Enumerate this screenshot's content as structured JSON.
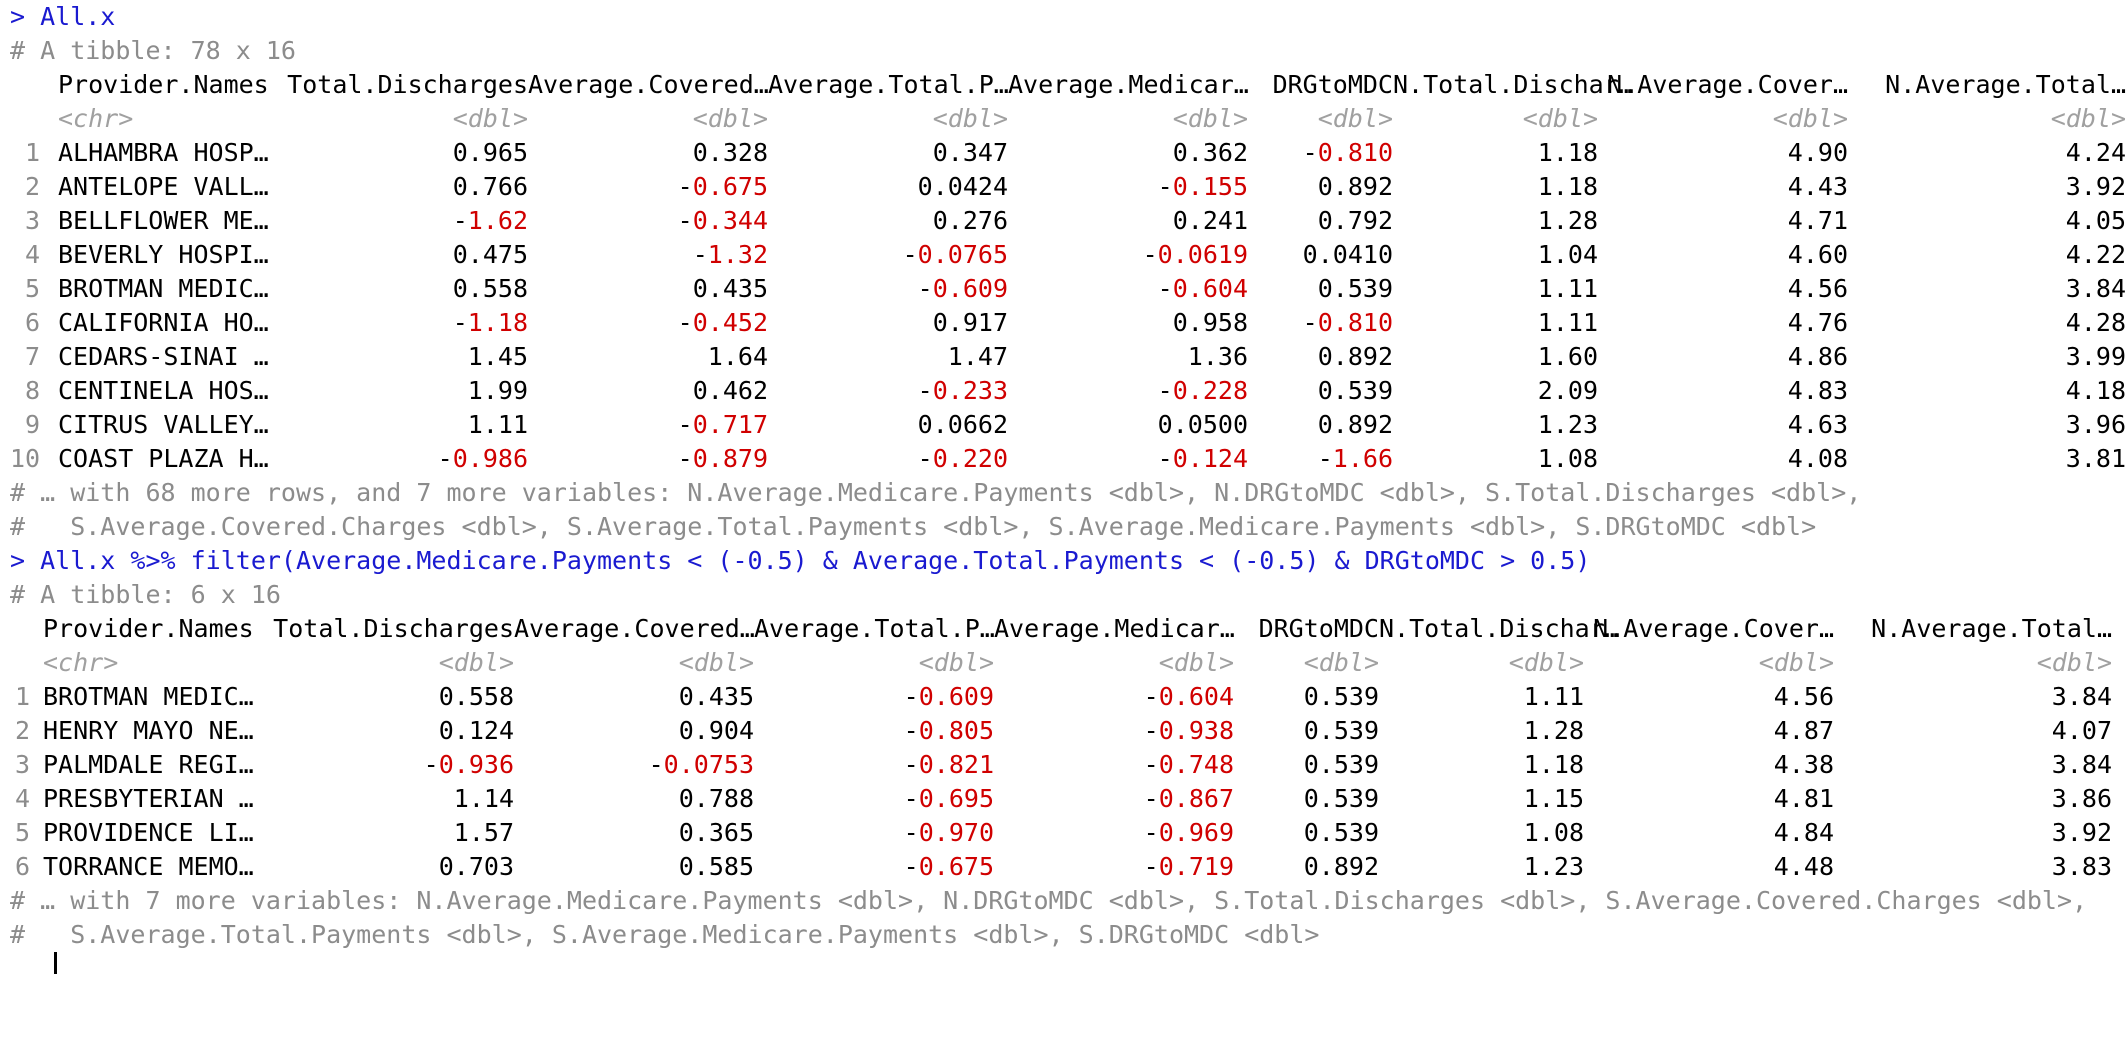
{
  "console": {
    "command1": "> All.x",
    "tibble1": {
      "header": "# A tibble: 78 x 16",
      "columns": [
        "Provider.Names",
        "Total.Discharges",
        "Average.Covered…",
        "Average.Total.P…",
        "Average.Medicar…",
        "DRGtoMDC",
        "N.Total.Dischar…",
        "N.Average.Cover…",
        "N.Average.Total…"
      ],
      "types": [
        "<chr>",
        "<dbl>",
        "<dbl>",
        "<dbl>",
        "<dbl>",
        "<dbl>",
        "<dbl>",
        "<dbl>",
        "<dbl>"
      ],
      "rows": [
        [
          "1",
          "ALHAMBRA HOSP…",
          "0.965",
          "0.328",
          "0.347",
          "0.362",
          "-0.810",
          "1.18",
          "4.90",
          "4.24"
        ],
        [
          "2",
          "ANTELOPE VALL…",
          "0.766",
          "-0.675",
          "0.0424",
          "-0.155",
          "0.892",
          "1.18",
          "4.43",
          "3.92"
        ],
        [
          "3",
          "BELLFLOWER ME…",
          "-1.62",
          "-0.344",
          "0.276",
          "0.241",
          "0.792",
          "1.28",
          "4.71",
          "4.05"
        ],
        [
          "4",
          "BEVERLY HOSPI…",
          "0.475",
          "-1.32",
          "-0.0765",
          "-0.0619",
          "0.0410",
          "1.04",
          "4.60",
          "4.22"
        ],
        [
          "5",
          "BROTMAN MEDIC…",
          "0.558",
          "0.435",
          "-0.609",
          "-0.604",
          "0.539",
          "1.11",
          "4.56",
          "3.84"
        ],
        [
          "6",
          "CALIFORNIA HO…",
          "-1.18",
          "-0.452",
          "0.917",
          "0.958",
          "-0.810",
          "1.11",
          "4.76",
          "4.28"
        ],
        [
          "7",
          "CEDARS-SINAI …",
          "1.45",
          "1.64",
          "1.47",
          "1.36",
          "0.892",
          "1.60",
          "4.86",
          "3.99"
        ],
        [
          "8",
          "CENTINELA HOS…",
          "1.99",
          "0.462",
          "-0.233",
          "-0.228",
          "0.539",
          "2.09",
          "4.83",
          "4.18"
        ],
        [
          "9",
          "CITRUS VALLEY…",
          "1.11",
          "-0.717",
          "0.0662",
          "0.0500",
          "0.892",
          "1.23",
          "4.63",
          "3.96"
        ],
        [
          "10",
          "COAST PLAZA H…",
          "-0.986",
          "-0.879",
          "-0.220",
          "-0.124",
          "-1.66",
          "1.08",
          "4.08",
          "3.81"
        ]
      ],
      "footer": [
        "# … with 68 more rows, and 7 more variables: N.Average.Medicare.Payments <dbl>, N.DRGtoMDC <dbl>, S.Total.Discharges <dbl>,",
        "#   S.Average.Covered.Charges <dbl>, S.Average.Total.Payments <dbl>, S.Average.Medicare.Payments <dbl>, S.DRGtoMDC <dbl>"
      ]
    },
    "command2": "> All.x %>% filter(Average.Medicare.Payments < (-0.5) & Average.Total.Payments < (-0.5) & DRGtoMDC > 0.5)",
    "tibble2": {
      "header": "# A tibble: 6 x 16",
      "columns": [
        "Provider.Names",
        "Total.Discharges",
        "Average.Covered…",
        "Average.Total.P…",
        "Average.Medicar…",
        "DRGtoMDC",
        "N.Total.Dischar…",
        "N.Average.Cover…",
        "N.Average.Total…"
      ],
      "types": [
        "<chr>",
        "<dbl>",
        "<dbl>",
        "<dbl>",
        "<dbl>",
        "<dbl>",
        "<dbl>",
        "<dbl>",
        "<dbl>"
      ],
      "rows": [
        [
          "1",
          "BROTMAN MEDIC…",
          "0.558",
          "0.435",
          "-0.609",
          "-0.604",
          "0.539",
          "1.11",
          "4.56",
          "3.84"
        ],
        [
          "2",
          "HENRY MAYO NE…",
          "0.124",
          "0.904",
          "-0.805",
          "-0.938",
          "0.539",
          "1.28",
          "4.87",
          "4.07"
        ],
        [
          "3",
          "PALMDALE REGI…",
          "-0.936",
          "-0.0753",
          "-0.821",
          "-0.748",
          "0.539",
          "1.18",
          "4.38",
          "3.84"
        ],
        [
          "4",
          "PRESBYTERIAN …",
          "1.14",
          "0.788",
          "-0.695",
          "-0.867",
          "0.539",
          "1.15",
          "4.81",
          "3.86"
        ],
        [
          "5",
          "PROVIDENCE LI…",
          "1.57",
          "0.365",
          "-0.970",
          "-0.969",
          "0.539",
          "1.08",
          "4.84",
          "3.92"
        ],
        [
          "6",
          "TORRANCE MEMO…",
          "0.703",
          "0.585",
          "-0.675",
          "-0.719",
          "0.892",
          "1.23",
          "4.48",
          "3.83"
        ]
      ],
      "footer": [
        "# … with 7 more variables: N.Average.Medicare.Payments <dbl>, N.DRGtoMDC <dbl>, S.Total.Discharges <dbl>, S.Average.Covered.Charges <dbl>,",
        "#   S.Average.Total.Payments <dbl>, S.Average.Medicare.Payments <dbl>, S.DRGtoMDC <dbl>"
      ]
    }
  }
}
